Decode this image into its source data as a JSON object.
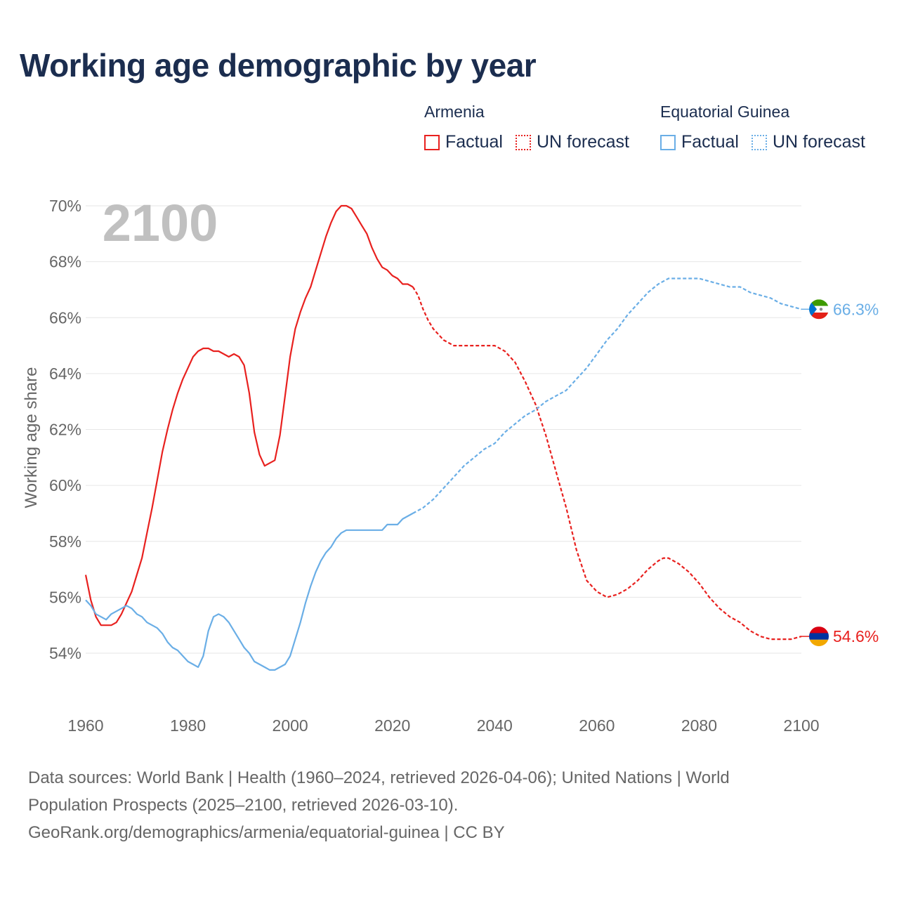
{
  "title": "Working age demographic by year",
  "legend": {
    "groups": [
      {
        "name": "Armenia",
        "factual_label": "Factual",
        "forecast_label": "UN forecast",
        "color": "#e8211f"
      },
      {
        "name": "Equatorial Guinea",
        "factual_label": "Factual",
        "forecast_label": "UN forecast",
        "color": "#6aaee6"
      }
    ]
  },
  "sources": {
    "line1": "Data sources: World Bank | Health (1960–2024, retrieved 2026-04-06); United Nations | World",
    "line2": "Population Prospects (2025–2100, retrieved 2026-03-10).",
    "line3": "GeoRank.org/demographics/armenia/equatorial-guinea | CC BY"
  },
  "chart_data": {
    "type": "line",
    "title": "Working age demographic by year",
    "year_watermark": "2100",
    "ylabel": "Working age share",
    "xlabel": "",
    "xlim": [
      1960,
      2100
    ],
    "ylim": [
      52.5,
      70.5
    ],
    "xticks": [
      1960,
      1980,
      2000,
      2020,
      2040,
      2060,
      2080,
      2100
    ],
    "xtick_labels": [
      "1960",
      "1980",
      "2000",
      "2020",
      "2040",
      "2060",
      "2080",
      "2100"
    ],
    "yticks": [
      54,
      56,
      58,
      60,
      62,
      64,
      66,
      68,
      70
    ],
    "ytick_labels": [
      "54%",
      "56%",
      "58%",
      "60%",
      "62%",
      "64%",
      "66%",
      "68%",
      "70%"
    ],
    "factual_end_year": 2024,
    "series": [
      {
        "name": "Armenia",
        "color": "#e8211f",
        "end_label": "54.6%",
        "flag": "armenia",
        "points": [
          [
            1960,
            56.8
          ],
          [
            1961,
            55.9
          ],
          [
            1962,
            55.3
          ],
          [
            1963,
            55.0
          ],
          [
            1964,
            55.0
          ],
          [
            1965,
            55.0
          ],
          [
            1966,
            55.1
          ],
          [
            1967,
            55.4
          ],
          [
            1968,
            55.8
          ],
          [
            1969,
            56.2
          ],
          [
            1970,
            56.8
          ],
          [
            1971,
            57.4
          ],
          [
            1972,
            58.3
          ],
          [
            1973,
            59.2
          ],
          [
            1974,
            60.2
          ],
          [
            1975,
            61.2
          ],
          [
            1976,
            62.0
          ],
          [
            1977,
            62.7
          ],
          [
            1978,
            63.3
          ],
          [
            1979,
            63.8
          ],
          [
            1980,
            64.2
          ],
          [
            1981,
            64.6
          ],
          [
            1982,
            64.8
          ],
          [
            1983,
            64.9
          ],
          [
            1984,
            64.9
          ],
          [
            1985,
            64.8
          ],
          [
            1986,
            64.8
          ],
          [
            1987,
            64.7
          ],
          [
            1988,
            64.6
          ],
          [
            1989,
            64.7
          ],
          [
            1990,
            64.6
          ],
          [
            1991,
            64.3
          ],
          [
            1992,
            63.3
          ],
          [
            1993,
            61.9
          ],
          [
            1994,
            61.1
          ],
          [
            1995,
            60.7
          ],
          [
            1996,
            60.8
          ],
          [
            1997,
            60.9
          ],
          [
            1998,
            61.8
          ],
          [
            1999,
            63.2
          ],
          [
            2000,
            64.6
          ],
          [
            2001,
            65.6
          ],
          [
            2002,
            66.2
          ],
          [
            2003,
            66.7
          ],
          [
            2004,
            67.1
          ],
          [
            2005,
            67.7
          ],
          [
            2006,
            68.3
          ],
          [
            2007,
            68.9
          ],
          [
            2008,
            69.4
          ],
          [
            2009,
            69.8
          ],
          [
            2010,
            70.0
          ],
          [
            2011,
            70.0
          ],
          [
            2012,
            69.9
          ],
          [
            2013,
            69.6
          ],
          [
            2014,
            69.3
          ],
          [
            2015,
            69.0
          ],
          [
            2016,
            68.5
          ],
          [
            2017,
            68.1
          ],
          [
            2018,
            67.8
          ],
          [
            2019,
            67.7
          ],
          [
            2020,
            67.5
          ],
          [
            2021,
            67.4
          ],
          [
            2022,
            67.2
          ],
          [
            2023,
            67.2
          ],
          [
            2024,
            67.1
          ],
          [
            2025,
            66.8
          ],
          [
            2026,
            66.3
          ],
          [
            2027,
            65.9
          ],
          [
            2028,
            65.6
          ],
          [
            2029,
            65.4
          ],
          [
            2030,
            65.2
          ],
          [
            2032,
            65.0
          ],
          [
            2035,
            65.0
          ],
          [
            2040,
            65.0
          ],
          [
            2042,
            64.8
          ],
          [
            2044,
            64.4
          ],
          [
            2046,
            63.7
          ],
          [
            2048,
            62.9
          ],
          [
            2050,
            61.8
          ],
          [
            2052,
            60.5
          ],
          [
            2054,
            59.2
          ],
          [
            2056,
            57.7
          ],
          [
            2058,
            56.6
          ],
          [
            2060,
            56.2
          ],
          [
            2062,
            56.0
          ],
          [
            2064,
            56.1
          ],
          [
            2066,
            56.3
          ],
          [
            2068,
            56.6
          ],
          [
            2070,
            57.0
          ],
          [
            2072,
            57.3
          ],
          [
            2073,
            57.4
          ],
          [
            2074,
            57.4
          ],
          [
            2076,
            57.2
          ],
          [
            2078,
            56.9
          ],
          [
            2080,
            56.5
          ],
          [
            2082,
            56.0
          ],
          [
            2084,
            55.6
          ],
          [
            2086,
            55.3
          ],
          [
            2088,
            55.1
          ],
          [
            2090,
            54.8
          ],
          [
            2092,
            54.6
          ],
          [
            2094,
            54.5
          ],
          [
            2096,
            54.5
          ],
          [
            2098,
            54.5
          ],
          [
            2100,
            54.6
          ]
        ]
      },
      {
        "name": "Equatorial Guinea",
        "color": "#6aaee6",
        "end_label": "66.3%",
        "flag": "equatorial-guinea",
        "points": [
          [
            1960,
            55.9
          ],
          [
            1961,
            55.7
          ],
          [
            1962,
            55.4
          ],
          [
            1963,
            55.3
          ],
          [
            1964,
            55.2
          ],
          [
            1965,
            55.4
          ],
          [
            1966,
            55.5
          ],
          [
            1967,
            55.6
          ],
          [
            1968,
            55.7
          ],
          [
            1969,
            55.6
          ],
          [
            1970,
            55.4
          ],
          [
            1971,
            55.3
          ],
          [
            1972,
            55.1
          ],
          [
            1973,
            55.0
          ],
          [
            1974,
            54.9
          ],
          [
            1975,
            54.7
          ],
          [
            1976,
            54.4
          ],
          [
            1977,
            54.2
          ],
          [
            1978,
            54.1
          ],
          [
            1979,
            53.9
          ],
          [
            1980,
            53.7
          ],
          [
            1981,
            53.6
          ],
          [
            1982,
            53.5
          ],
          [
            1983,
            53.9
          ],
          [
            1984,
            54.8
          ],
          [
            1985,
            55.3
          ],
          [
            1986,
            55.4
          ],
          [
            1987,
            55.3
          ],
          [
            1988,
            55.1
          ],
          [
            1989,
            54.8
          ],
          [
            1990,
            54.5
          ],
          [
            1991,
            54.2
          ],
          [
            1992,
            54.0
          ],
          [
            1993,
            53.7
          ],
          [
            1994,
            53.6
          ],
          [
            1995,
            53.5
          ],
          [
            1996,
            53.4
          ],
          [
            1997,
            53.4
          ],
          [
            1998,
            53.5
          ],
          [
            1999,
            53.6
          ],
          [
            2000,
            53.9
          ],
          [
            2001,
            54.5
          ],
          [
            2002,
            55.1
          ],
          [
            2003,
            55.8
          ],
          [
            2004,
            56.4
          ],
          [
            2005,
            56.9
          ],
          [
            2006,
            57.3
          ],
          [
            2007,
            57.6
          ],
          [
            2008,
            57.8
          ],
          [
            2009,
            58.1
          ],
          [
            2010,
            58.3
          ],
          [
            2011,
            58.4
          ],
          [
            2012,
            58.4
          ],
          [
            2014,
            58.4
          ],
          [
            2016,
            58.4
          ],
          [
            2018,
            58.4
          ],
          [
            2019,
            58.6
          ],
          [
            2020,
            58.6
          ],
          [
            2021,
            58.6
          ],
          [
            2022,
            58.8
          ],
          [
            2024,
            59.0
          ],
          [
            2026,
            59.2
          ],
          [
            2028,
            59.5
          ],
          [
            2030,
            59.9
          ],
          [
            2032,
            60.3
          ],
          [
            2034,
            60.7
          ],
          [
            2036,
            61.0
          ],
          [
            2038,
            61.3
          ],
          [
            2040,
            61.5
          ],
          [
            2042,
            61.9
          ],
          [
            2044,
            62.2
          ],
          [
            2046,
            62.5
          ],
          [
            2048,
            62.7
          ],
          [
            2050,
            63.0
          ],
          [
            2052,
            63.2
          ],
          [
            2054,
            63.4
          ],
          [
            2056,
            63.8
          ],
          [
            2058,
            64.2
          ],
          [
            2060,
            64.7
          ],
          [
            2062,
            65.2
          ],
          [
            2064,
            65.6
          ],
          [
            2066,
            66.1
          ],
          [
            2068,
            66.5
          ],
          [
            2070,
            66.9
          ],
          [
            2072,
            67.2
          ],
          [
            2074,
            67.4
          ],
          [
            2076,
            67.4
          ],
          [
            2078,
            67.4
          ],
          [
            2080,
            67.4
          ],
          [
            2082,
            67.3
          ],
          [
            2084,
            67.2
          ],
          [
            2086,
            67.1
          ],
          [
            2088,
            67.1
          ],
          [
            2090,
            66.9
          ],
          [
            2092,
            66.8
          ],
          [
            2094,
            66.7
          ],
          [
            2096,
            66.5
          ],
          [
            2098,
            66.4
          ],
          [
            2100,
            66.3
          ]
        ]
      }
    ]
  }
}
